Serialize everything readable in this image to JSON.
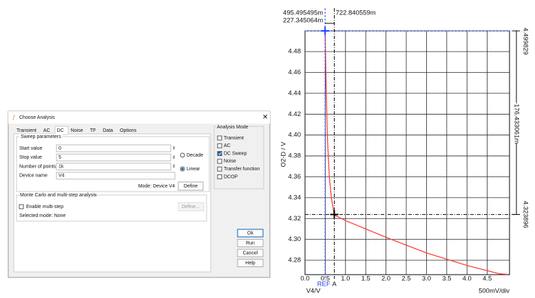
{
  "dialog": {
    "title": "Choose Analysis",
    "tabs": [
      "Transient",
      "AC",
      "DC",
      "Noise",
      "TF",
      "Data",
      "Options"
    ],
    "sweep": {
      "title": "Sweep parameters",
      "fields": [
        {
          "label": "Start value",
          "value": "0"
        },
        {
          "label": "Stop value",
          "value": "5"
        },
        {
          "label": "Number of points",
          "value": "1k"
        },
        {
          "label": "Device name",
          "value": "V4"
        }
      ],
      "scale_options": [
        {
          "label": "Decade",
          "selected": false
        },
        {
          "label": "Linear",
          "selected": true
        }
      ],
      "mode": "Mode: Device V4",
      "define": "Define"
    },
    "analysis_mode": {
      "title": "Analysis Mode",
      "options": [
        {
          "label": "Transient",
          "checked": false
        },
        {
          "label": "AC",
          "checked": false
        },
        {
          "label": "DC Sweep",
          "checked": true
        },
        {
          "label": "Noise",
          "checked": false
        },
        {
          "label": "Transfer function",
          "checked": false
        },
        {
          "label": "DCOP",
          "checked": false
        }
      ]
    },
    "monte_carlo": {
      "title": "Monte Carlo and multi-step analysis",
      "enable": {
        "label": "Enable multi-step",
        "checked": false
      },
      "define": "Define...",
      "selected_mode": "Selected mode: None"
    },
    "buttons": [
      "Ok",
      "Run",
      "Cancel",
      "Help"
    ]
  },
  "chart_data": {
    "type": "line",
    "y_label": "O2-D / V",
    "x_label": "V4/V",
    "x_scale_label": "500mV/div",
    "xlim": [
      0,
      5.05
    ],
    "ylim": [
      4.2662,
      4.499829
    ],
    "xticks": [
      {
        "value": 0,
        "label": "0.0"
      },
      0.5,
      {
        "value": 1,
        "label": "1.0"
      },
      1.5,
      {
        "value": 2,
        "label": "2.0"
      },
      2.5,
      {
        "value": 3,
        "label": "3.0"
      },
      3.5,
      {
        "value": 4,
        "label": "4.0"
      },
      4.5
    ],
    "yticks": [
      4.28,
      {
        "value": 4.3,
        "label": "4.30"
      },
      4.32,
      4.34,
      4.36,
      4.38,
      {
        "value": 4.4,
        "label": "4.40"
      },
      4.42,
      4.44,
      4.46,
      4.48
    ],
    "grid": true,
    "series": [
      {
        "name": "O2-D",
        "color": "#ff3b3b",
        "x": [
          0.495,
          0.5,
          0.52,
          0.55,
          0.6,
          0.65,
          0.72,
          1.0,
          2.0,
          3.0,
          4.0,
          4.8,
          5.0
        ],
        "values": [
          4.4998,
          4.49,
          4.45,
          4.4,
          4.36,
          4.34,
          4.3236,
          4.318,
          4.302,
          4.287,
          4.275,
          4.267,
          4.2665
        ]
      }
    ],
    "cursors": [
      {
        "label": "REF",
        "color": "#1f3fff",
        "x": 0.495495,
        "x_label": "495.495495m",
        "y": 4.499829,
        "y_label": "4.499829"
      },
      {
        "label": "A",
        "color": "#000000",
        "x": 0.722840559,
        "x_label": "722.840559m",
        "y": 4.323896,
        "y_label": "4.323896"
      }
    ],
    "delta_x_label": "227.345064m",
    "delta_y_label": "-176.433061m"
  }
}
